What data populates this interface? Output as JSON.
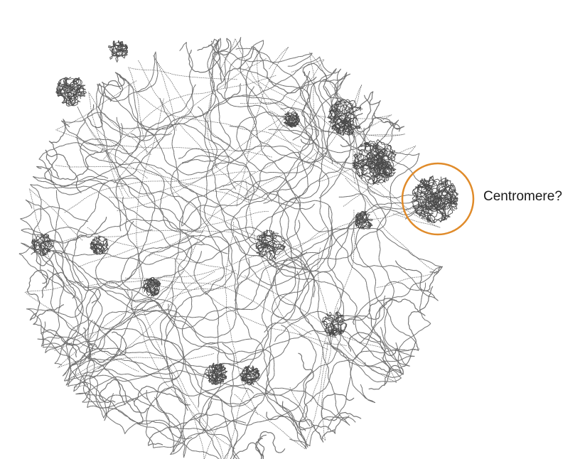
{
  "annotation": {
    "label": "Centromere?",
    "highlight_color": "#E08B2A"
  },
  "colors": {
    "strand": "#6f6f6f",
    "cluster": "#4a4a4a"
  }
}
